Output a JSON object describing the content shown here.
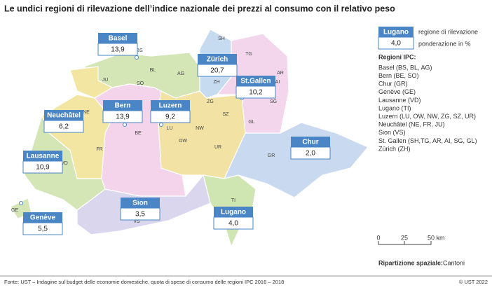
{
  "title": "Le undici regioni di rilevazione dell’indice nazionale dei prezzi al consumo con il relativo peso",
  "regions": [
    {
      "name": "Basel",
      "value": "13,9"
    },
    {
      "name": "Zürich",
      "value": "20,7"
    },
    {
      "name": "St.Gallen",
      "value": "10,2"
    },
    {
      "name": "Neuchâtel",
      "value": "6,2"
    },
    {
      "name": "Bern",
      "value": "13,9"
    },
    {
      "name": "Luzern",
      "value": "9,2"
    },
    {
      "name": "Lausanne",
      "value": "10,9"
    },
    {
      "name": "Chur",
      "value": "2,0"
    },
    {
      "name": "Sion",
      "value": "3,5"
    },
    {
      "name": "Lugano",
      "value": "4,0"
    },
    {
      "name": "Genève",
      "value": "5,5"
    }
  ],
  "cantons": [
    "BS",
    "BL",
    "SO",
    "JU",
    "AG",
    "SH",
    "TG",
    "ZH",
    "AR",
    "AI",
    "SG",
    "NE",
    "BE",
    "LU",
    "OW",
    "NW",
    "ZG",
    "SZ",
    "UR",
    "GL",
    "FR",
    "VD",
    "GR",
    "GE",
    "VS",
    "TI"
  ],
  "legend": {
    "sample_name": "Lugano",
    "sample_value": "4,0",
    "name_caption": "regione di rilevazione",
    "value_caption": "ponderazione in %",
    "list_title": "Regioni IPC:",
    "items": [
      "Basel (BS, BL, AG)",
      "Bern (BE, SO)",
      "Chur (GR)",
      "Genève (GE)",
      "Lausanne (VD)",
      "Lugano (TI)",
      "Luzern (LU, OW, NW, ZG, SZ, UR)",
      "Neuchâtel (NE, FR, JU)",
      "Sion (VS)",
      "St. Gallen (SH,TG, AR, AI, SG, GL)",
      "Zürich (ZH)"
    ]
  },
  "scale": {
    "labels": [
      "0",
      "25",
      "50 km"
    ]
  },
  "spatial": {
    "label": "Ripartizione spaziale:",
    "value": "Cantoni"
  },
  "footer": {
    "source": "Fonte: UST – Indagine sul budget delle economie domestiche, quota di spese di consumo delle regioni IPC 2016 – 2018",
    "copyright": "© UST 2022"
  }
}
